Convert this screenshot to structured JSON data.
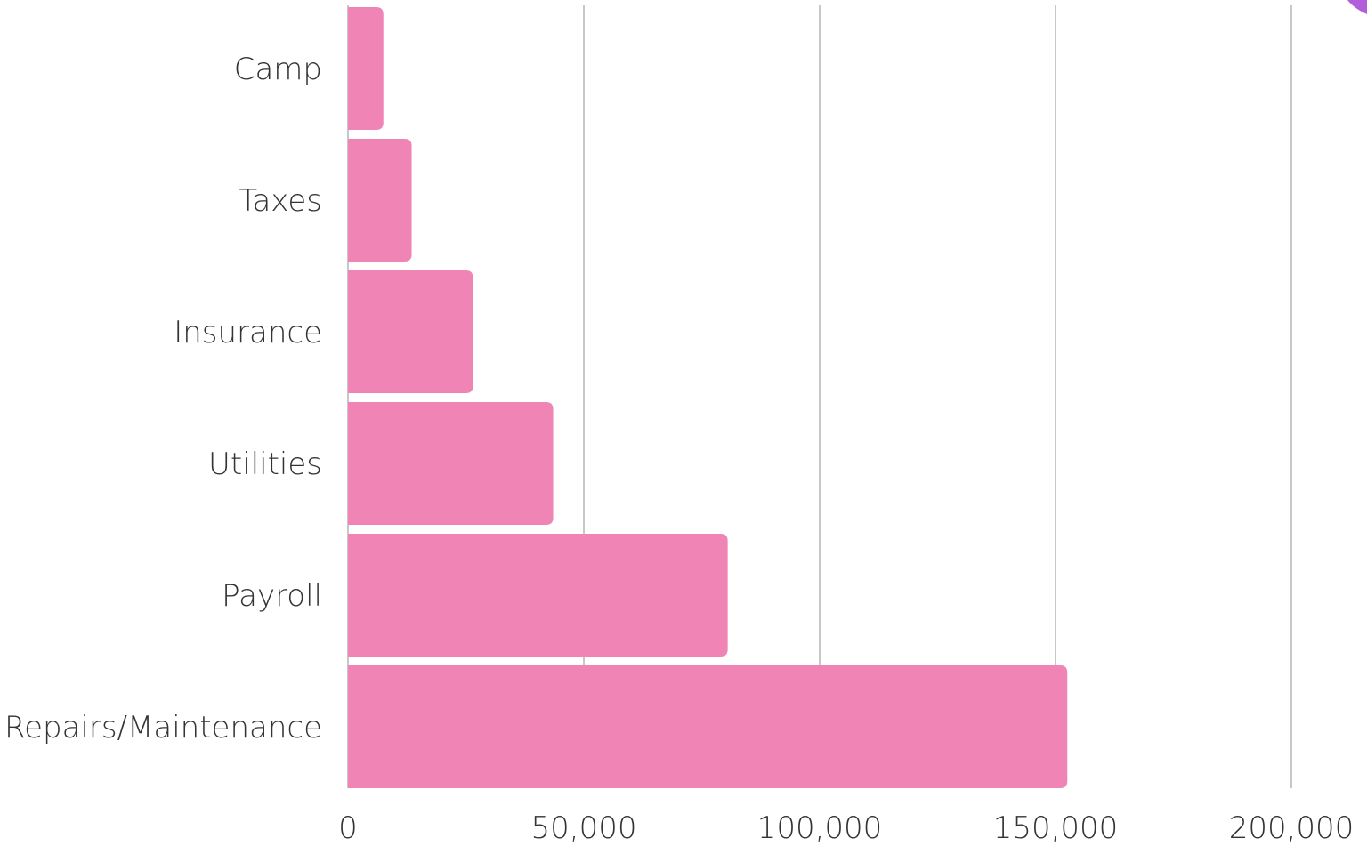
{
  "chart_data": {
    "type": "bar",
    "orientation": "horizontal",
    "categories": [
      "Camp",
      "Taxes",
      "Insurance",
      "Utilities",
      "Payroll",
      "Repairs/Maintenance"
    ],
    "values": [
      7500,
      13500,
      26500,
      43500,
      80500,
      152500
    ],
    "xlim": [
      0,
      200000
    ],
    "xticks": [
      0,
      50000,
      100000,
      150000,
      200000
    ],
    "xtick_labels": [
      "0",
      "50,000",
      "100,000",
      "150,000",
      "200,000"
    ],
    "grid": true,
    "legend": "none",
    "title": "",
    "xlabel": "",
    "ylabel": "",
    "colors": {
      "bar": "#f084b4",
      "grid": "#c8c8c8",
      "text": "#333333",
      "accent": "#b35ed9"
    }
  }
}
